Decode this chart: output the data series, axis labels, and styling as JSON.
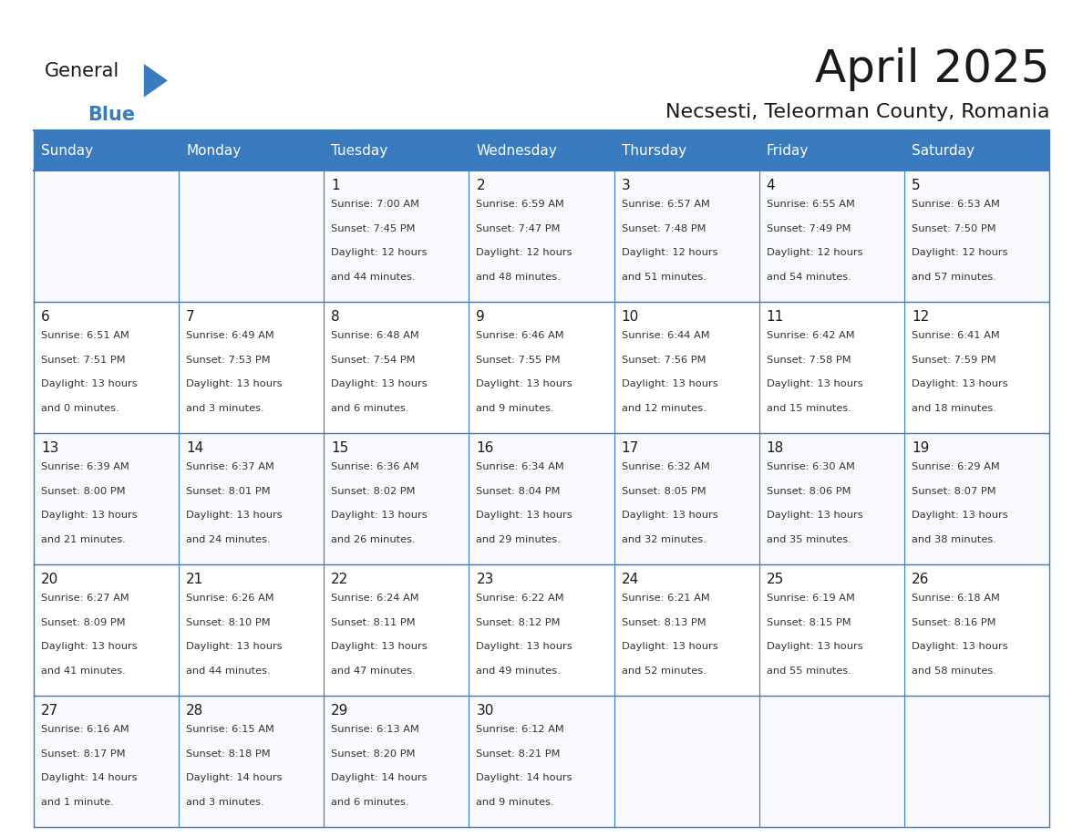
{
  "title": "April 2025",
  "subtitle": "Necsesti, Teleorman County, Romania",
  "days_of_week": [
    "Sunday",
    "Monday",
    "Tuesday",
    "Wednesday",
    "Thursday",
    "Friday",
    "Saturday"
  ],
  "header_bg_color": "#3a7bbf",
  "header_text_color": "#ffffff",
  "cell_bg_color": "#ffffff",
  "cell_alt_bg_color": "#f0f4f8",
  "grid_color": "#3a7bbf",
  "day_number_color": "#1a1a1a",
  "cell_text_color": "#333333",
  "title_color": "#1a1a1a",
  "subtitle_color": "#1a1a1a",
  "logo_general_color": "#1a1a1a",
  "logo_blue_color": "#3a7bbf",
  "weeks": [
    [
      {
        "day": null,
        "info": ""
      },
      {
        "day": null,
        "info": ""
      },
      {
        "day": 1,
        "info": "Sunrise: 7:00 AM\nSunset: 7:45 PM\nDaylight: 12 hours\nand 44 minutes."
      },
      {
        "day": 2,
        "info": "Sunrise: 6:59 AM\nSunset: 7:47 PM\nDaylight: 12 hours\nand 48 minutes."
      },
      {
        "day": 3,
        "info": "Sunrise: 6:57 AM\nSunset: 7:48 PM\nDaylight: 12 hours\nand 51 minutes."
      },
      {
        "day": 4,
        "info": "Sunrise: 6:55 AM\nSunset: 7:49 PM\nDaylight: 12 hours\nand 54 minutes."
      },
      {
        "day": 5,
        "info": "Sunrise: 6:53 AM\nSunset: 7:50 PM\nDaylight: 12 hours\nand 57 minutes."
      }
    ],
    [
      {
        "day": 6,
        "info": "Sunrise: 6:51 AM\nSunset: 7:51 PM\nDaylight: 13 hours\nand 0 minutes."
      },
      {
        "day": 7,
        "info": "Sunrise: 6:49 AM\nSunset: 7:53 PM\nDaylight: 13 hours\nand 3 minutes."
      },
      {
        "day": 8,
        "info": "Sunrise: 6:48 AM\nSunset: 7:54 PM\nDaylight: 13 hours\nand 6 minutes."
      },
      {
        "day": 9,
        "info": "Sunrise: 6:46 AM\nSunset: 7:55 PM\nDaylight: 13 hours\nand 9 minutes."
      },
      {
        "day": 10,
        "info": "Sunrise: 6:44 AM\nSunset: 7:56 PM\nDaylight: 13 hours\nand 12 minutes."
      },
      {
        "day": 11,
        "info": "Sunrise: 6:42 AM\nSunset: 7:58 PM\nDaylight: 13 hours\nand 15 minutes."
      },
      {
        "day": 12,
        "info": "Sunrise: 6:41 AM\nSunset: 7:59 PM\nDaylight: 13 hours\nand 18 minutes."
      }
    ],
    [
      {
        "day": 13,
        "info": "Sunrise: 6:39 AM\nSunset: 8:00 PM\nDaylight: 13 hours\nand 21 minutes."
      },
      {
        "day": 14,
        "info": "Sunrise: 6:37 AM\nSunset: 8:01 PM\nDaylight: 13 hours\nand 24 minutes."
      },
      {
        "day": 15,
        "info": "Sunrise: 6:36 AM\nSunset: 8:02 PM\nDaylight: 13 hours\nand 26 minutes."
      },
      {
        "day": 16,
        "info": "Sunrise: 6:34 AM\nSunset: 8:04 PM\nDaylight: 13 hours\nand 29 minutes."
      },
      {
        "day": 17,
        "info": "Sunrise: 6:32 AM\nSunset: 8:05 PM\nDaylight: 13 hours\nand 32 minutes."
      },
      {
        "day": 18,
        "info": "Sunrise: 6:30 AM\nSunset: 8:06 PM\nDaylight: 13 hours\nand 35 minutes."
      },
      {
        "day": 19,
        "info": "Sunrise: 6:29 AM\nSunset: 8:07 PM\nDaylight: 13 hours\nand 38 minutes."
      }
    ],
    [
      {
        "day": 20,
        "info": "Sunrise: 6:27 AM\nSunset: 8:09 PM\nDaylight: 13 hours\nand 41 minutes."
      },
      {
        "day": 21,
        "info": "Sunrise: 6:26 AM\nSunset: 8:10 PM\nDaylight: 13 hours\nand 44 minutes."
      },
      {
        "day": 22,
        "info": "Sunrise: 6:24 AM\nSunset: 8:11 PM\nDaylight: 13 hours\nand 47 minutes."
      },
      {
        "day": 23,
        "info": "Sunrise: 6:22 AM\nSunset: 8:12 PM\nDaylight: 13 hours\nand 49 minutes."
      },
      {
        "day": 24,
        "info": "Sunrise: 6:21 AM\nSunset: 8:13 PM\nDaylight: 13 hours\nand 52 minutes."
      },
      {
        "day": 25,
        "info": "Sunrise: 6:19 AM\nSunset: 8:15 PM\nDaylight: 13 hours\nand 55 minutes."
      },
      {
        "day": 26,
        "info": "Sunrise: 6:18 AM\nSunset: 8:16 PM\nDaylight: 13 hours\nand 58 minutes."
      }
    ],
    [
      {
        "day": 27,
        "info": "Sunrise: 6:16 AM\nSunset: 8:17 PM\nDaylight: 14 hours\nand 1 minute."
      },
      {
        "day": 28,
        "info": "Sunrise: 6:15 AM\nSunset: 8:18 PM\nDaylight: 14 hours\nand 3 minutes."
      },
      {
        "day": 29,
        "info": "Sunrise: 6:13 AM\nSunset: 8:20 PM\nDaylight: 14 hours\nand 6 minutes."
      },
      {
        "day": 30,
        "info": "Sunrise: 6:12 AM\nSunset: 8:21 PM\nDaylight: 14 hours\nand 9 minutes."
      },
      {
        "day": null,
        "info": ""
      },
      {
        "day": null,
        "info": ""
      },
      {
        "day": null,
        "info": ""
      }
    ]
  ]
}
